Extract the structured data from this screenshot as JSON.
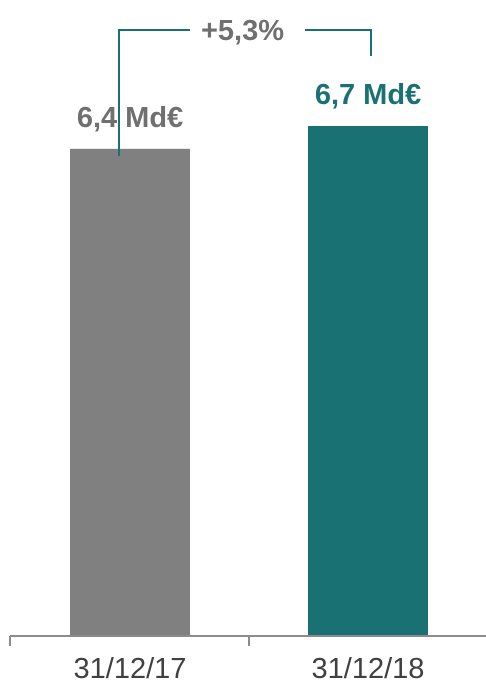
{
  "chart_data": {
    "type": "bar",
    "categories": [
      "31/12/17",
      "31/12/18"
    ],
    "values": [
      6.4,
      6.7
    ],
    "data_labels": [
      "6,4 Md€",
      "6,7 Md€"
    ],
    "bar_colors": [
      "#808080",
      "#1a7173"
    ],
    "label_colors": [
      "#707070",
      "#1a7173"
    ],
    "ylim": [
      0,
      6.7
    ],
    "grid": false,
    "legend": "none",
    "annotation": {
      "text": "+5,3%",
      "color": "#1a7173",
      "text_color": "#707070"
    },
    "axis_color": "#8c8c8c"
  }
}
